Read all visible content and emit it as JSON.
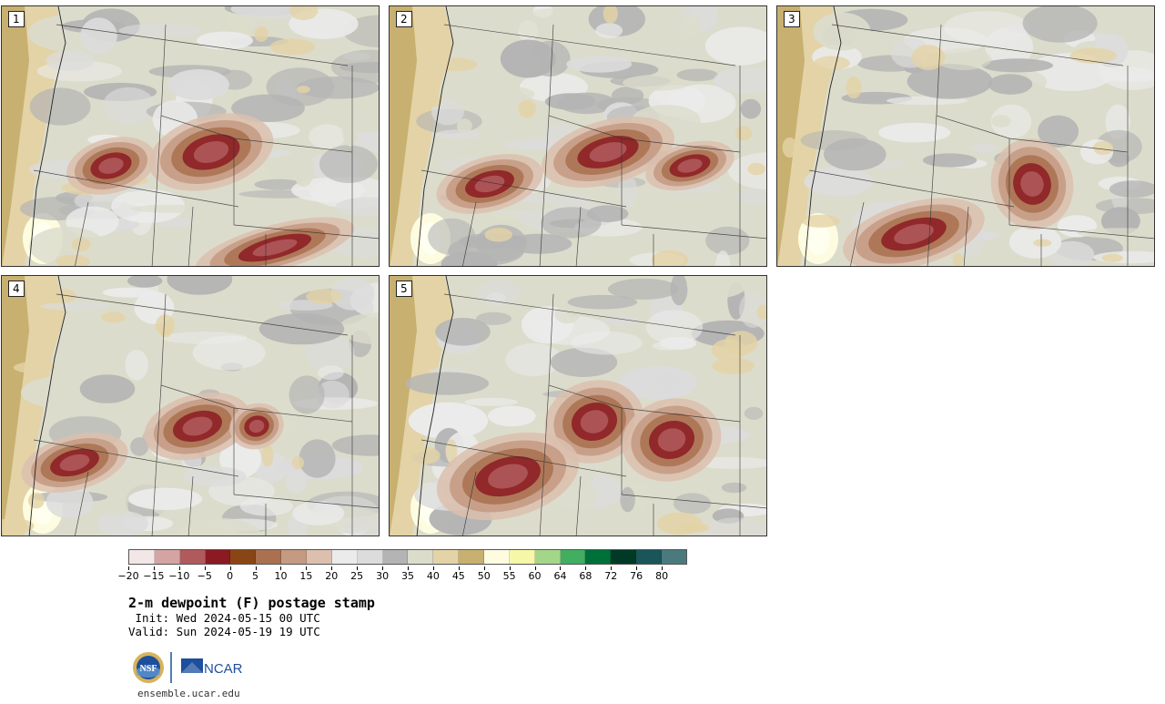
{
  "panels": [
    {
      "label": "1"
    },
    {
      "label": "2"
    },
    {
      "label": "3"
    },
    {
      "label": "4"
    },
    {
      "label": "5"
    }
  ],
  "colorbar": {
    "colors": [
      "#f2e6e6",
      "#d4a3a3",
      "#b05a5e",
      "#8c1a22",
      "#8a4515",
      "#a9714f",
      "#c49a82",
      "#dcbfae",
      "#ebebeb",
      "#dcdcdc",
      "#b4b4b4",
      "#dcdccc",
      "#e3d3a6",
      "#c8b070",
      "#fefce0",
      "#f7f7a8",
      "#a4d68a",
      "#41ae62",
      "#00703a",
      "#003a26",
      "#1a555a",
      "#4a7a7e"
    ],
    "ticks": [
      "-20",
      "-15",
      "-10",
      "-5",
      "0",
      "5",
      "10",
      "15",
      "20",
      "25",
      "30",
      "35",
      "40",
      "45",
      "50",
      "55",
      "60",
      "64",
      "68",
      "72",
      "76",
      "80"
    ]
  },
  "title": "2-m dewpoint (F) postage stamp",
  "init": " Init: Wed 2024-05-15 00 UTC",
  "valid": "Valid: Sun 2024-05-19 19 UTC",
  "logos": {
    "nsf": "NSF",
    "ncar": "NCAR"
  },
  "site": "ensemble.ucar.edu"
}
